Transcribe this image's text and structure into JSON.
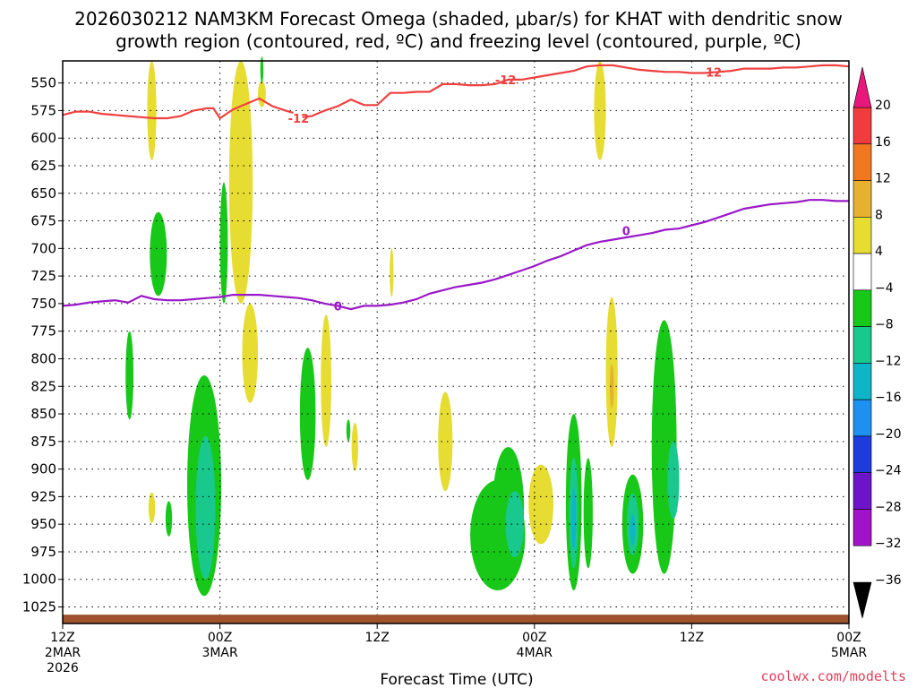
{
  "title_line1": "2026030212 NAM3KM Forecast Omega (shaded, μbar/s) for KHAT with dendritic snow",
  "title_line2": "growth region (contoured, red, ºC) and freezing level (contoured, purple, ºC)",
  "credit": "coolwx.com/modelts",
  "chart_data": {
    "type": "heatmap",
    "title": "2026030212 NAM3KM Forecast Omega (shaded, μbar/s) for KHAT with dendritic snow growth region (contoured, red, ºC) and freezing level (contoured, purple, ºC)",
    "xlabel": "Forecast Time (UTC)",
    "ylabel": "",
    "x_range_hours": [
      0,
      60
    ],
    "y_range_mb": [
      1040,
      530
    ],
    "y_ticks": [
      550,
      575,
      600,
      625,
      650,
      675,
      700,
      725,
      750,
      775,
      800,
      825,
      850,
      875,
      900,
      925,
      950,
      975,
      1000,
      1025
    ],
    "x_ticks": [
      {
        "hour": 0,
        "lines": [
          "12Z",
          "2MAR",
          "2026"
        ]
      },
      {
        "hour": 12,
        "lines": [
          "00Z",
          "3MAR"
        ]
      },
      {
        "hour": 24,
        "lines": [
          "12Z"
        ]
      },
      {
        "hour": 36,
        "lines": [
          "00Z",
          "4MAR"
        ]
      },
      {
        "hour": 48,
        "lines": [
          "12Z"
        ]
      },
      {
        "hour": 60,
        "lines": [
          "00Z",
          "5MAR"
        ]
      }
    ],
    "grid": true,
    "colorbar": {
      "ticks": [
        20,
        16,
        12,
        8,
        4,
        -4,
        -8,
        -12,
        -16,
        -20,
        -24,
        -28,
        -32,
        -36
      ],
      "bins": [
        {
          "lo": 20,
          "hi": 24,
          "color": "#e8187a"
        },
        {
          "lo": 16,
          "hi": 20,
          "color": "#f03c3c"
        },
        {
          "lo": 12,
          "hi": 16,
          "color": "#f07820"
        },
        {
          "lo": 8,
          "hi": 12,
          "color": "#e8b030"
        },
        {
          "lo": 4,
          "hi": 8,
          "color": "#e6dc32"
        },
        {
          "lo": -4,
          "hi": 4,
          "color": "#ffffff"
        },
        {
          "lo": -8,
          "hi": -4,
          "color": "#18c818"
        },
        {
          "lo": -12,
          "hi": -8,
          "color": "#18c88c"
        },
        {
          "lo": -16,
          "hi": -12,
          "color": "#10b4c8"
        },
        {
          "lo": -20,
          "hi": -16,
          "color": "#1e90f0"
        },
        {
          "lo": -24,
          "hi": -20,
          "color": "#1e3cdc"
        },
        {
          "lo": -28,
          "hi": -24,
          "color": "#6e14c8"
        },
        {
          "lo": -32,
          "hi": -28,
          "color": "#a014c8"
        },
        {
          "lo": -36,
          "hi": -32,
          "color": "#a0a0a0"
        }
      ]
    },
    "ground_layer_mb": [
      1032,
      1040
    ],
    "ground_color": "#a0522d",
    "contours": [
      {
        "label": "-12",
        "color": "#f04040",
        "segments": [
          [
            [
              0,
              579
            ],
            [
              1,
              576
            ],
            [
              2,
              576
            ],
            [
              3,
              578
            ],
            [
              4,
              579
            ],
            [
              5,
              580
            ],
            [
              6,
              581
            ],
            [
              7,
              582
            ],
            [
              8,
              582
            ],
            [
              9,
              580
            ],
            [
              10,
              575
            ],
            [
              11,
              573
            ],
            [
              11.5,
              573
            ],
            [
              12,
              582
            ],
            [
              13,
              574
            ],
            [
              14,
              569
            ],
            [
              15,
              564
            ],
            [
              16,
              571
            ],
            [
              17,
              575
            ],
            [
              17.6,
              577
            ]
          ],
          [
            [
              18.3,
              581
            ],
            [
              19,
              580
            ],
            [
              20,
              575
            ],
            [
              21,
              571
            ],
            [
              22,
              565
            ],
            [
              23,
              570
            ],
            [
              24,
              570
            ],
            [
              25,
              559
            ],
            [
              26,
              559
            ],
            [
              27,
              558
            ],
            [
              28,
              558
            ],
            [
              29,
              551
            ],
            [
              30,
              551
            ],
            [
              31,
              552
            ],
            [
              32,
              552
            ],
            [
              33,
              551
            ],
            [
              34,
              547
            ],
            [
              35,
              547
            ],
            [
              36,
              545
            ],
            [
              37,
              543
            ],
            [
              38,
              541
            ],
            [
              39,
              539
            ],
            [
              40,
              535
            ],
            [
              41,
              534
            ],
            [
              42,
              534
            ],
            [
              43,
              536
            ],
            [
              44,
              538
            ],
            [
              45,
              539
            ],
            [
              46,
              540
            ],
            [
              47,
              540
            ],
            [
              48,
              541
            ],
            [
              49,
              541
            ],
            [
              50,
              540
            ],
            [
              51,
              539
            ],
            [
              52,
              537
            ],
            [
              53,
              537
            ],
            [
              54,
              537
            ],
            [
              55,
              536
            ],
            [
              56,
              536
            ],
            [
              57,
              535
            ],
            [
              58,
              534
            ],
            [
              59,
              534
            ],
            [
              60,
              535
            ]
          ]
        ],
        "labels_at": [
          [
            18.0,
            582
          ],
          [
            33.8,
            547
          ],
          [
            49.5,
            540
          ]
        ]
      },
      {
        "label": "0",
        "color": "#9a18c8",
        "segments": [
          [
            [
              0,
              752
            ],
            [
              1,
              751
            ],
            [
              2,
              749
            ],
            [
              3,
              748
            ],
            [
              4,
              747
            ],
            [
              5,
              749
            ],
            [
              6,
              743
            ],
            [
              7,
              746
            ],
            [
              8,
              747
            ],
            [
              9,
              747
            ],
            [
              10,
              746
            ],
            [
              11,
              745
            ],
            [
              12,
              744
            ],
            [
              13,
              742
            ],
            [
              14,
              742
            ],
            [
              15,
              742
            ],
            [
              16,
              743
            ],
            [
              17,
              744
            ],
            [
              18,
              745
            ],
            [
              19,
              747
            ],
            [
              20,
              750
            ],
            [
              21,
              752
            ],
            [
              22,
              755
            ],
            [
              23,
              752
            ],
            [
              24,
              752
            ],
            [
              25,
              751
            ],
            [
              26,
              749
            ],
            [
              27,
              746
            ],
            [
              28,
              741
            ],
            [
              29,
              738
            ],
            [
              30,
              735
            ],
            [
              31,
              733
            ],
            [
              32,
              731
            ],
            [
              33,
              728
            ],
            [
              34,
              724
            ],
            [
              35,
              720
            ],
            [
              36,
              716
            ],
            [
              37,
              711
            ],
            [
              38,
              707
            ],
            [
              39,
              702
            ],
            [
              40,
              697
            ],
            [
              41,
              694
            ],
            [
              42,
              692
            ],
            [
              43,
              690
            ],
            [
              44,
              688
            ],
            [
              45,
              686
            ],
            [
              46,
              683
            ],
            [
              47,
              682
            ],
            [
              48,
              679
            ],
            [
              49,
              676
            ],
            [
              50,
              672
            ],
            [
              51,
              668
            ],
            [
              52,
              664
            ],
            [
              53,
              662
            ],
            [
              54,
              660
            ],
            [
              55,
              659
            ],
            [
              56,
              658
            ],
            [
              57,
              656
            ],
            [
              58,
              656
            ],
            [
              59,
              657
            ],
            [
              60,
              657
            ]
          ]
        ],
        "labels_at": [
          [
            21.0,
            752
          ],
          [
            43.0,
            684
          ]
        ]
      }
    ],
    "shaded_regions": [
      {
        "value": 6,
        "hour": 6.8,
        "mb": 575,
        "half_width_h": 0.35,
        "half_depth_mb": 45
      },
      {
        "value": 6,
        "hour": 13.6,
        "mb": 640,
        "half_width_h": 0.9,
        "half_depth_mb": 110
      },
      {
        "value": 6,
        "hour": 14.3,
        "mb": 795,
        "half_width_h": 0.6,
        "half_depth_mb": 45
      },
      {
        "value": 6,
        "hour": 15.2,
        "mb": 560,
        "half_width_h": 0.3,
        "half_depth_mb": 12
      },
      {
        "value": 6,
        "hour": 20.1,
        "mb": 820,
        "half_width_h": 0.4,
        "half_depth_mb": 60
      },
      {
        "value": 6,
        "hour": 22.3,
        "mb": 880,
        "half_width_h": 0.25,
        "half_depth_mb": 22
      },
      {
        "value": 6,
        "hour": 25.1,
        "mb": 722,
        "half_width_h": 0.15,
        "half_depth_mb": 22
      },
      {
        "value": 6,
        "hour": 29.2,
        "mb": 875,
        "half_width_h": 0.55,
        "half_depth_mb": 45
      },
      {
        "value": 6,
        "hour": 36.5,
        "mb": 932,
        "half_width_h": 0.95,
        "half_depth_mb": 36
      },
      {
        "value": 6,
        "hour": 41.0,
        "mb": 575,
        "half_width_h": 0.45,
        "half_depth_mb": 45
      },
      {
        "value": 6,
        "hour": 41.9,
        "mb": 812,
        "half_width_h": 0.45,
        "half_depth_mb": 68
      },
      {
        "value": 6,
        "hour": 6.8,
        "mb": 935,
        "half_width_h": 0.25,
        "half_depth_mb": 14
      },
      {
        "value": 10,
        "hour": 41.9,
        "mb": 825,
        "half_width_h": 0.15,
        "half_depth_mb": 20
      },
      {
        "value": -6,
        "hour": 5.1,
        "mb": 815,
        "half_width_h": 0.3,
        "half_depth_mb": 40
      },
      {
        "value": -6,
        "hour": 7.3,
        "mb": 705,
        "half_width_h": 0.65,
        "half_depth_mb": 38
      },
      {
        "value": -6,
        "hour": 8.1,
        "mb": 945,
        "half_width_h": 0.25,
        "half_depth_mb": 16
      },
      {
        "value": -6,
        "hour": 10.8,
        "mb": 915,
        "half_width_h": 1.3,
        "half_depth_mb": 100
      },
      {
        "value": -6,
        "hour": 12.3,
        "mb": 695,
        "half_width_h": 0.3,
        "half_depth_mb": 55
      },
      {
        "value": -6,
        "hour": 15.2,
        "mb": 538,
        "half_width_h": 0.12,
        "half_depth_mb": 12
      },
      {
        "value": -6,
        "hour": 18.7,
        "mb": 850,
        "half_width_h": 0.6,
        "half_depth_mb": 60
      },
      {
        "value": -6,
        "hour": 21.8,
        "mb": 865,
        "half_width_h": 0.15,
        "half_depth_mb": 10
      },
      {
        "value": -6,
        "hour": 33.2,
        "mb": 960,
        "half_width_h": 2.1,
        "half_depth_mb": 50
      },
      {
        "value": -6,
        "hour": 34.0,
        "mb": 935,
        "half_width_h": 1.2,
        "half_depth_mb": 55
      },
      {
        "value": -6,
        "hour": 39.0,
        "mb": 930,
        "half_width_h": 0.6,
        "half_depth_mb": 80
      },
      {
        "value": -6,
        "hour": 40.1,
        "mb": 940,
        "half_width_h": 0.35,
        "half_depth_mb": 50
      },
      {
        "value": -6,
        "hour": 43.5,
        "mb": 950,
        "half_width_h": 0.8,
        "half_depth_mb": 45
      },
      {
        "value": -6,
        "hour": 45.9,
        "mb": 880,
        "half_width_h": 0.95,
        "half_depth_mb": 115
      },
      {
        "value": -10,
        "hour": 10.9,
        "mb": 935,
        "half_width_h": 0.75,
        "half_depth_mb": 65
      },
      {
        "value": -10,
        "hour": 34.5,
        "mb": 950,
        "half_width_h": 0.7,
        "half_depth_mb": 30
      },
      {
        "value": -10,
        "hour": 39.0,
        "mb": 940,
        "half_width_h": 0.35,
        "half_depth_mb": 50
      },
      {
        "value": -10,
        "hour": 43.5,
        "mb": 950,
        "half_width_h": 0.45,
        "half_depth_mb": 28
      },
      {
        "value": -10,
        "hour": 46.6,
        "mb": 910,
        "half_width_h": 0.45,
        "half_depth_mb": 35
      },
      {
        "value": -14,
        "hour": 39.0,
        "mb": 945,
        "half_width_h": 0.18,
        "half_depth_mb": 28
      },
      {
        "value": -14,
        "hour": 43.5,
        "mb": 955,
        "half_width_h": 0.18,
        "half_depth_mb": 14
      }
    ]
  }
}
